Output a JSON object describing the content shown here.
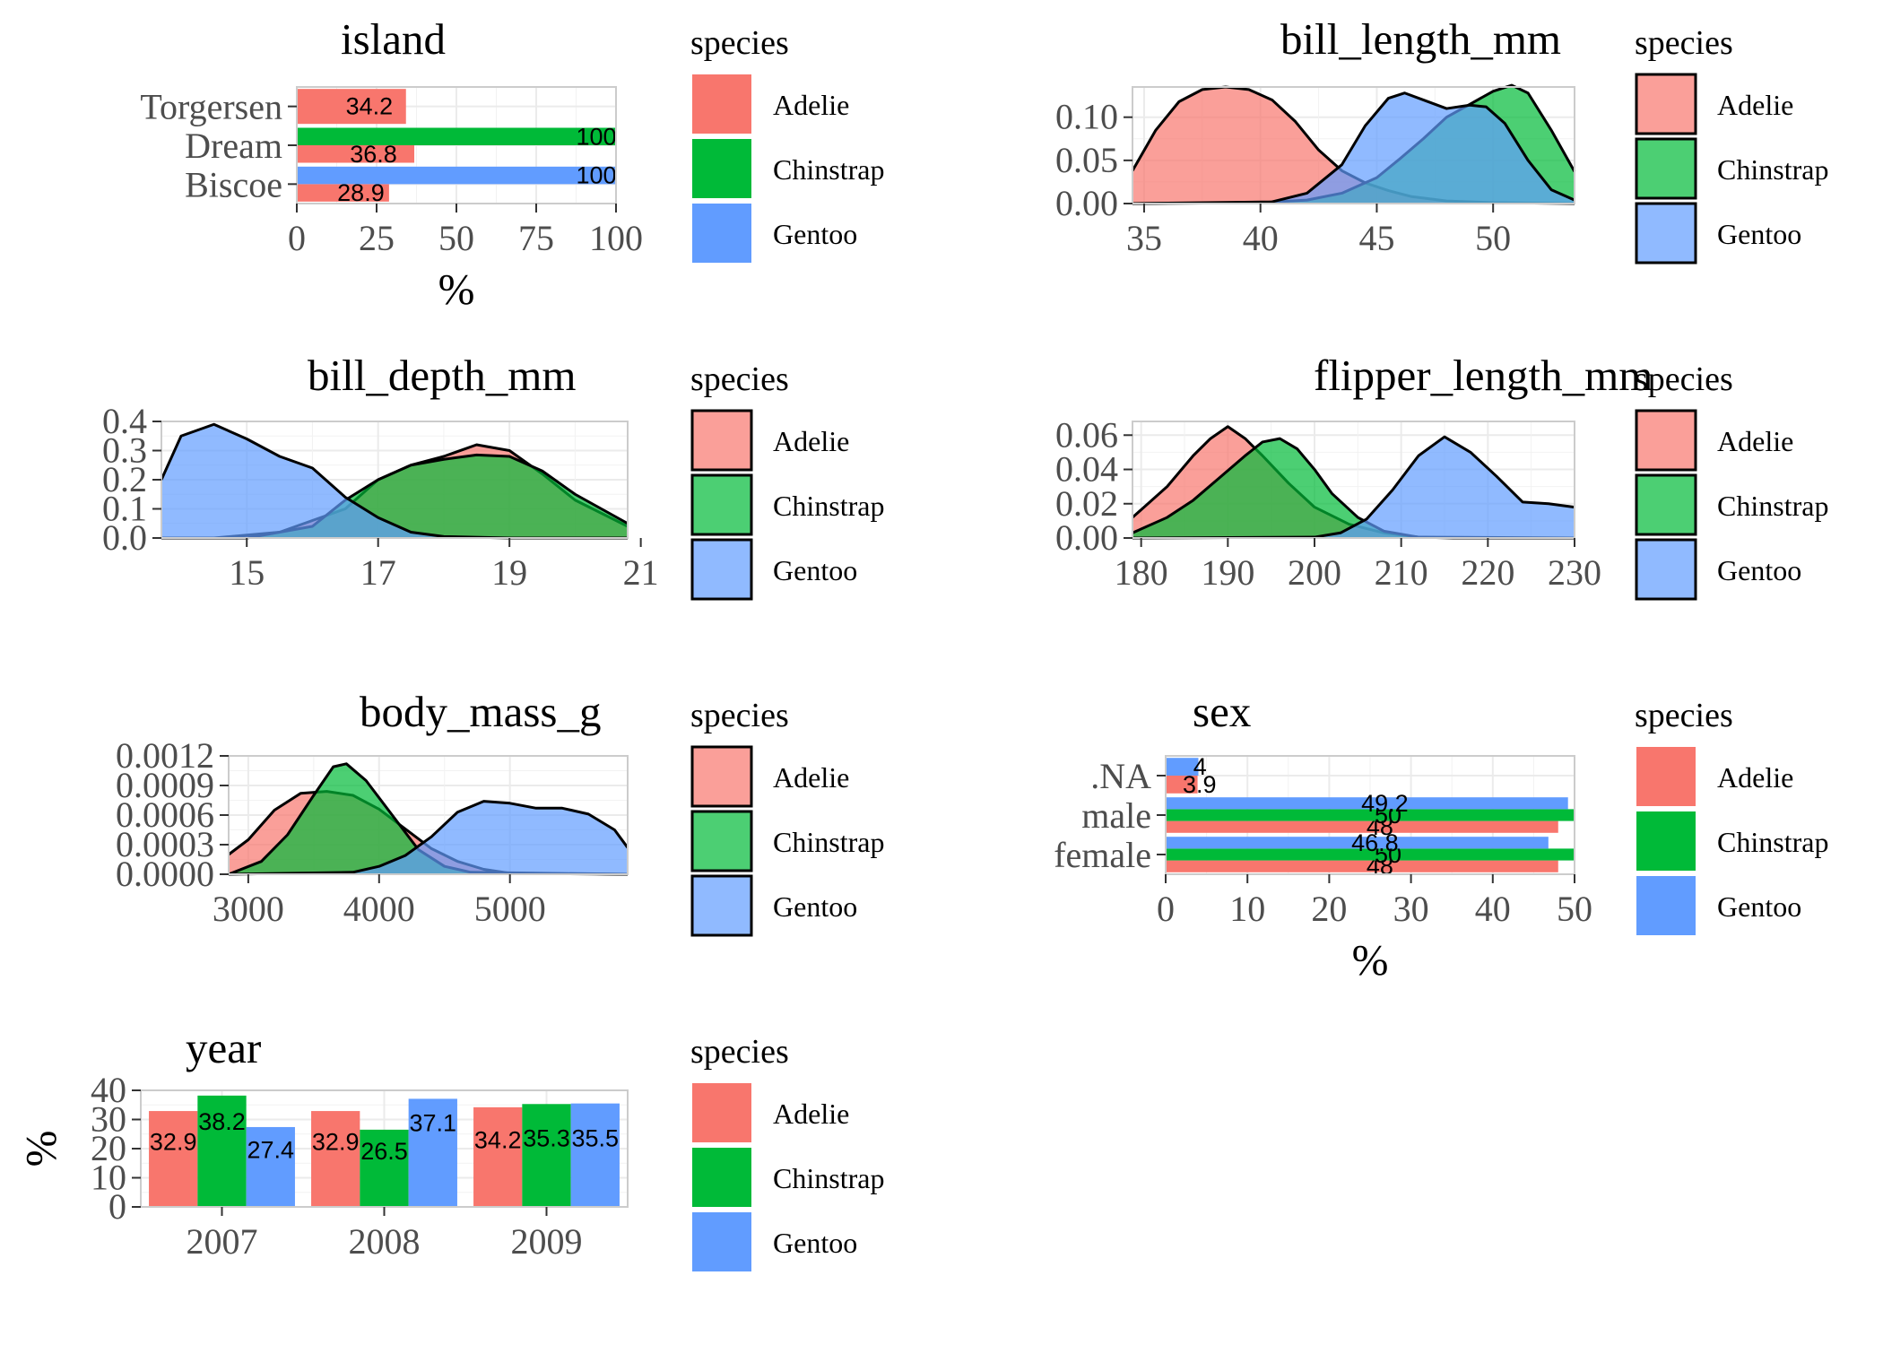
{
  "species": {
    "legend_title": "species",
    "names": [
      "Adelie",
      "Chinstrap",
      "Gentoo"
    ],
    "colors": [
      "#F8766D",
      "#00BA38",
      "#619CFF"
    ]
  },
  "chart_data": [
    {
      "id": "island",
      "type": "bar",
      "orientation": "horizontal",
      "title": "island",
      "xlabel": "%",
      "ylabel": "",
      "xlim": [
        0,
        100
      ],
      "xticks": [
        0,
        25,
        50,
        75,
        100
      ],
      "categories": [
        "Torgersen",
        "Dream",
        "Biscoe"
      ],
      "series": [
        {
          "name": "Adelie",
          "values": [
            34.2,
            36.8,
            28.9
          ]
        },
        {
          "name": "Chinstrap",
          "values": [
            null,
            100,
            null
          ]
        },
        {
          "name": "Gentoo",
          "values": [
            null,
            null,
            100
          ]
        }
      ],
      "data_labels": true,
      "grid": true
    },
    {
      "id": "bill_length_mm",
      "type": "area",
      "title": "bill_length_mm",
      "xlabel": "",
      "ylabel": "",
      "xlim": [
        34.5,
        53.5
      ],
      "ylim": [
        0,
        0.135
      ],
      "xticks": [
        35,
        40,
        45,
        50
      ],
      "yticks": [
        0.0,
        0.05,
        0.1
      ],
      "ytick_labels": [
        "0.00",
        "0.05",
        "0.10"
      ],
      "series": [
        {
          "name": "Adelie",
          "x": [
            34.5,
            35.5,
            36.5,
            37.5,
            38.5,
            39.5,
            40.5,
            41.5,
            42.5,
            43.5,
            44.5,
            45.5,
            46.5,
            48,
            50,
            53.5
          ],
          "y": [
            0.038,
            0.085,
            0.118,
            0.132,
            0.135,
            0.132,
            0.12,
            0.095,
            0.062,
            0.038,
            0.024,
            0.015,
            0.008,
            0.003,
            0.001,
            0.0
          ]
        },
        {
          "name": "Chinstrap",
          "x": [
            34.5,
            40,
            42,
            43.5,
            45,
            46,
            47,
            48,
            49,
            50,
            50.8,
            51.5,
            52.5,
            53.5
          ],
          "y": [
            0.0,
            0.001,
            0.004,
            0.012,
            0.03,
            0.052,
            0.075,
            0.1,
            0.115,
            0.13,
            0.137,
            0.128,
            0.085,
            0.037
          ]
        },
        {
          "name": "Gentoo",
          "x": [
            34.5,
            40.5,
            42,
            43.5,
            44.5,
            45.5,
            46.2,
            47,
            48,
            49,
            49.7,
            50.5,
            51.5,
            52.5,
            53.5
          ],
          "y": [
            0.0,
            0.002,
            0.012,
            0.045,
            0.09,
            0.122,
            0.128,
            0.12,
            0.11,
            0.114,
            0.112,
            0.093,
            0.05,
            0.016,
            0.004
          ]
        }
      ],
      "grid": true
    },
    {
      "id": "bill_depth_mm",
      "type": "area",
      "title": "bill_depth_mm",
      "xlabel": "",
      "ylabel": "",
      "xlim": [
        13.7,
        20.8
      ],
      "ylim": [
        0,
        0.4
      ],
      "xticks": [
        15,
        17,
        19,
        21
      ],
      "yticks": [
        0.0,
        0.1,
        0.2,
        0.3,
        0.4
      ],
      "ytick_labels": [
        "0.0",
        "0.1",
        "0.2",
        "0.3",
        "0.4"
      ],
      "series": [
        {
          "name": "Adelie",
          "x": [
            13.7,
            14.5,
            15.5,
            16.5,
            17,
            17.5,
            18,
            18.5,
            19,
            19.5,
            20,
            20.8
          ],
          "y": [
            0.0,
            0.0,
            0.02,
            0.1,
            0.2,
            0.25,
            0.28,
            0.32,
            0.3,
            0.22,
            0.13,
            0.04
          ]
        },
        {
          "name": "Chinstrap",
          "x": [
            13.7,
            15,
            16,
            16.5,
            17,
            17.5,
            18,
            18.5,
            19,
            19.5,
            20,
            20.8
          ],
          "y": [
            0.0,
            0.0,
            0.04,
            0.13,
            0.2,
            0.25,
            0.27,
            0.285,
            0.28,
            0.23,
            0.15,
            0.05
          ]
        },
        {
          "name": "Gentoo",
          "x": [
            13.7,
            14,
            14.5,
            15,
            15.5,
            16,
            16.5,
            17,
            17.5,
            18,
            19,
            20.8
          ],
          "y": [
            0.2,
            0.35,
            0.39,
            0.34,
            0.28,
            0.24,
            0.14,
            0.07,
            0.02,
            0.005,
            0.0,
            0.0
          ]
        }
      ],
      "grid": true
    },
    {
      "id": "flipper_length_mm",
      "type": "area",
      "title": "flipper_length_mm",
      "xlabel": "",
      "ylabel": "",
      "xlim": [
        179,
        230
      ],
      "ylim": [
        0,
        0.068
      ],
      "xticks": [
        180,
        190,
        200,
        210,
        220,
        230
      ],
      "yticks": [
        0.0,
        0.02,
        0.04,
        0.06
      ],
      "ytick_labels": [
        "0.00",
        "0.02",
        "0.04",
        "0.06"
      ],
      "series": [
        {
          "name": "Adelie",
          "x": [
            179,
            183,
            186,
            188,
            190,
            192,
            194,
            197,
            200,
            204,
            208,
            212,
            216,
            230
          ],
          "y": [
            0.012,
            0.03,
            0.048,
            0.058,
            0.065,
            0.058,
            0.048,
            0.032,
            0.018,
            0.008,
            0.003,
            0.0005,
            0.0,
            0.0
          ]
        },
        {
          "name": "Chinstrap",
          "x": [
            179,
            183,
            186,
            189,
            192,
            194,
            196,
            198,
            200,
            202,
            205,
            208,
            212,
            230
          ],
          "y": [
            0.003,
            0.012,
            0.022,
            0.035,
            0.048,
            0.056,
            0.058,
            0.052,
            0.04,
            0.026,
            0.012,
            0.004,
            0.0005,
            0.0
          ]
        },
        {
          "name": "Gentoo",
          "x": [
            179,
            200,
            203,
            206,
            209,
            212,
            215,
            218,
            221,
            224,
            227,
            230
          ],
          "y": [
            0.0,
            0.0005,
            0.003,
            0.011,
            0.028,
            0.048,
            0.059,
            0.05,
            0.036,
            0.021,
            0.02,
            0.018
          ]
        }
      ],
      "grid": true
    },
    {
      "id": "body_mass_g",
      "type": "area",
      "title": "body_mass_g",
      "xlabel": "",
      "ylabel": "",
      "xlim": [
        2850,
        5900
      ],
      "ylim": [
        0,
        0.0012
      ],
      "xticks": [
        3000,
        4000,
        5000
      ],
      "yticks": [
        0.0,
        0.0003,
        0.0006,
        0.0009,
        0.0012
      ],
      "ytick_labels": [
        "0.0000",
        "0.0003",
        "0.0006",
        "0.0009",
        "0.0012"
      ],
      "series": [
        {
          "name": "Adelie",
          "x": [
            2850,
            3000,
            3200,
            3400,
            3600,
            3800,
            4000,
            4200,
            4400,
            4600,
            4800,
            5000,
            5900
          ],
          "y": [
            0.0002,
            0.00035,
            0.00065,
            0.00082,
            0.00084,
            0.0008,
            0.00066,
            0.00046,
            0.00026,
            0.00013,
            5e-05,
            1e-05,
            0.0
          ]
        },
        {
          "name": "Chinstrap",
          "x": [
            2850,
            3100,
            3300,
            3500,
            3650,
            3750,
            3900,
            4100,
            4300,
            4500,
            4700,
            5900
          ],
          "y": [
            0.0,
            0.00013,
            0.0004,
            0.0008,
            0.00109,
            0.00112,
            0.00095,
            0.0006,
            0.00025,
            8e-05,
            2e-05,
            0.0
          ]
        },
        {
          "name": "Gentoo",
          "x": [
            2850,
            3800,
            4000,
            4200,
            4400,
            4600,
            4800,
            5000,
            5200,
            5400,
            5600,
            5800,
            5900
          ],
          "y": [
            0.0,
            2e-05,
            8e-05,
            0.00019,
            0.00038,
            0.00063,
            0.00074,
            0.00072,
            0.00067,
            0.00067,
            0.00061,
            0.00045,
            0.00027
          ]
        }
      ],
      "grid": true
    },
    {
      "id": "sex",
      "type": "bar",
      "orientation": "horizontal",
      "title": "sex",
      "xlabel": "%",
      "ylabel": "",
      "xlim": [
        0,
        50
      ],
      "xticks": [
        0,
        10,
        20,
        30,
        40,
        50
      ],
      "categories": [
        ".NA",
        "male",
        "female"
      ],
      "series": [
        {
          "name": "Adelie",
          "values": [
            3.9,
            48,
            48
          ]
        },
        {
          "name": "Chinstrap",
          "values": [
            null,
            50,
            50
          ]
        },
        {
          "name": "Gentoo",
          "values": [
            4,
            49.2,
            46.8
          ]
        }
      ],
      "data_labels": true,
      "grid": true
    },
    {
      "id": "year",
      "type": "bar",
      "orientation": "vertical",
      "title": "year",
      "xlabel": "",
      "ylabel": "%",
      "ylim": [
        0,
        40
      ],
      "yticks": [
        0,
        10,
        20,
        30,
        40
      ],
      "categories": [
        "2007",
        "2008",
        "2009"
      ],
      "series": [
        {
          "name": "Adelie",
          "values": [
            32.9,
            32.9,
            34.2
          ]
        },
        {
          "name": "Chinstrap",
          "values": [
            38.2,
            26.5,
            35.3
          ]
        },
        {
          "name": "Gentoo",
          "values": [
            27.4,
            37.1,
            35.5
          ]
        }
      ],
      "data_labels": true,
      "grid": true
    }
  ]
}
